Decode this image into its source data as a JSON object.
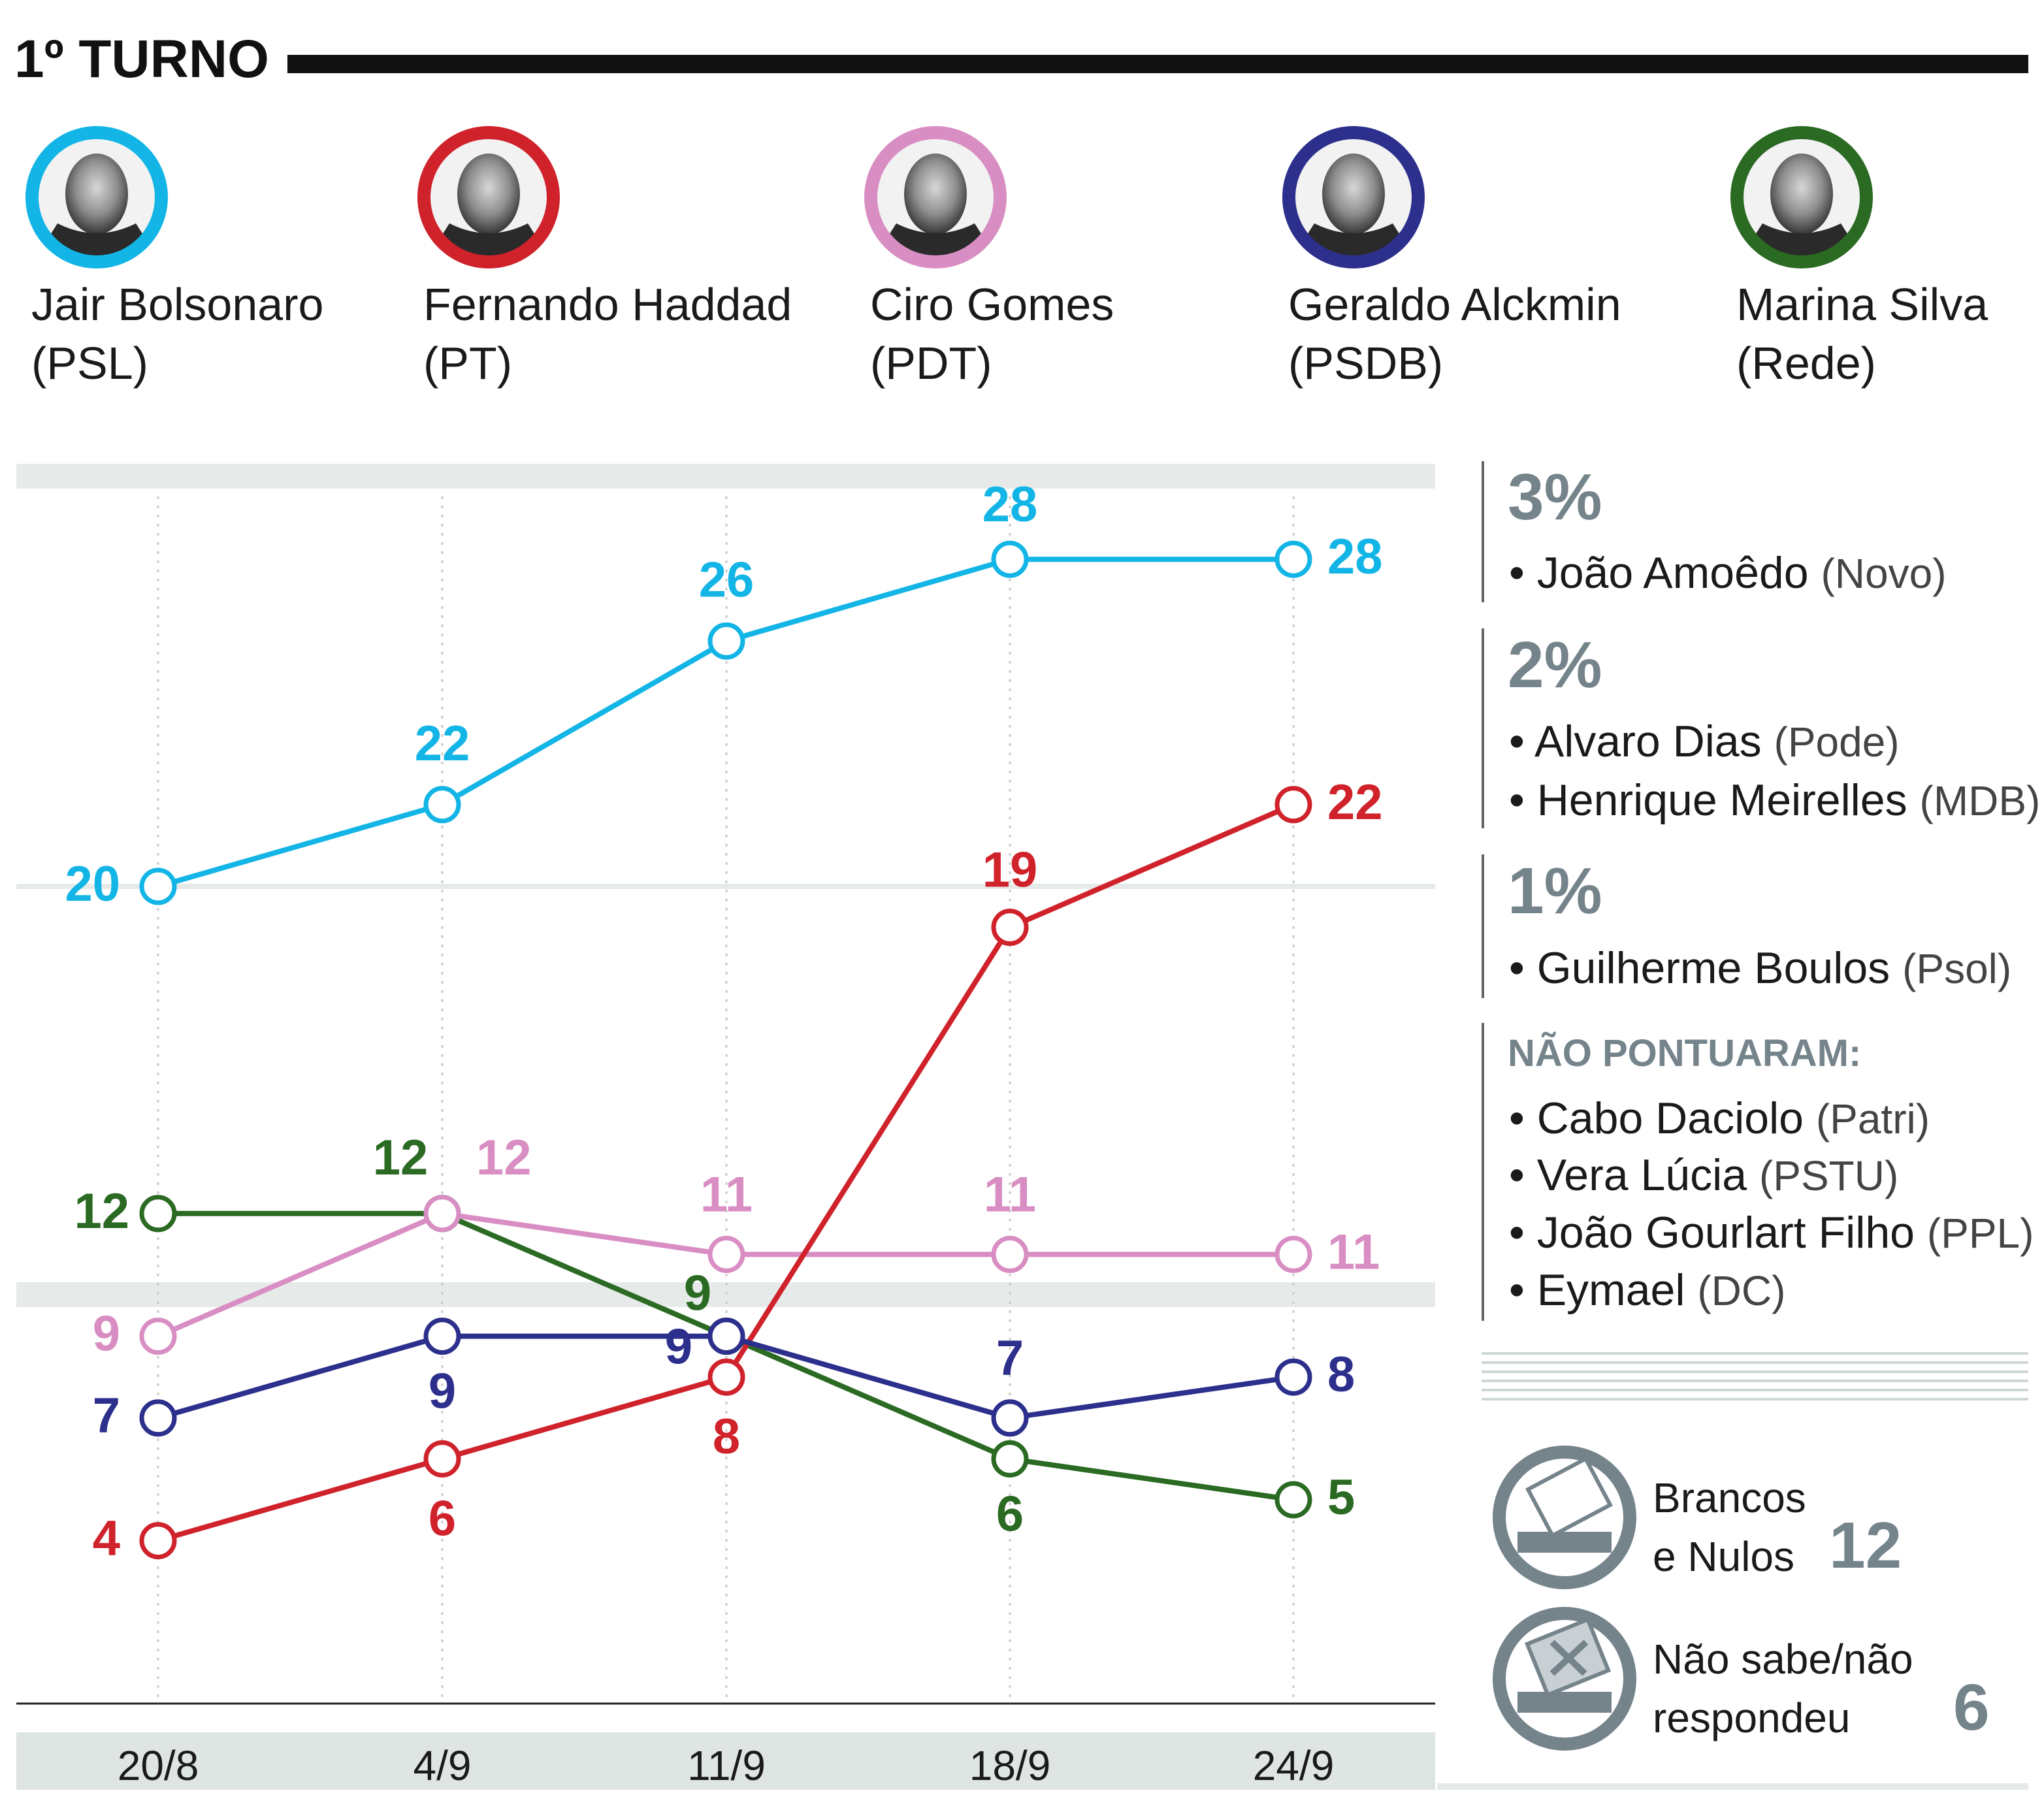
{
  "header": {
    "title": "1º TURNO"
  },
  "candidates": [
    {
      "name": "Jair Bolsonaro",
      "party": "(PSL)",
      "color": "#12b5e6",
      "icon": "portrait-photo"
    },
    {
      "name": "Fernando Haddad",
      "party": "(PT)",
      "color": "#d0222b",
      "icon": "portrait-photo"
    },
    {
      "name": "Ciro Gomes",
      "party": "(PDT)",
      "color": "#d98ec3",
      "icon": "portrait-photo"
    },
    {
      "name": "Geraldo Alckmin",
      "party": "(PSDB)",
      "color": "#2c2f8c",
      "icon": "portrait-photo"
    },
    {
      "name": "Marina Silva",
      "party": "(Rede)",
      "color": "#2a6a22",
      "icon": "portrait-photo"
    }
  ],
  "chart_data": {
    "type": "line",
    "title": "1º TURNO",
    "categories": [
      "20/8",
      "4/9",
      "11/9",
      "18/9",
      "24/9"
    ],
    "ylim": [
      0,
      30
    ],
    "grid": true,
    "series": [
      {
        "name": "Jair Bolsonaro",
        "color": "#12b5e6",
        "values": [
          20,
          22,
          26,
          28,
          28
        ]
      },
      {
        "name": "Fernando Haddad",
        "color": "#d0222b",
        "values": [
          4,
          6,
          8,
          19,
          22
        ]
      },
      {
        "name": "Ciro Gomes",
        "color": "#d98ec3",
        "values": [
          9,
          12,
          11,
          11,
          11
        ]
      },
      {
        "name": "Geraldo Alckmin",
        "color": "#2c2f8c",
        "values": [
          7,
          9,
          9,
          7,
          8
        ]
      },
      {
        "name": "Marina Silva",
        "color": "#2a6a22",
        "values": [
          12,
          12,
          9,
          6,
          5
        ]
      }
    ]
  },
  "others": {
    "groups": [
      {
        "percent": "3%",
        "items": [
          {
            "name": "João Amoêdo",
            "party": "(Novo)"
          }
        ]
      },
      {
        "percent": "2%",
        "items": [
          {
            "name": "Alvaro Dias",
            "party": "(Pode)"
          },
          {
            "name": "Henrique Meirelles",
            "party": "(MDB)"
          }
        ]
      },
      {
        "percent": "1%",
        "items": [
          {
            "name": "Guilherme Boulos",
            "party": "(Psol)"
          }
        ]
      }
    ],
    "no_score": {
      "heading": "NÃO PONTUARAM:",
      "items": [
        {
          "name": "Cabo Daciolo",
          "party": "(Patri)"
        },
        {
          "name": "Vera Lúcia",
          "party": "(PSTU)"
        },
        {
          "name": "João Gourlart Filho",
          "party": "(PPL)"
        },
        {
          "name": "Eymael",
          "party": "(DC)"
        }
      ]
    }
  },
  "summary": {
    "blank_null": {
      "line1": "Brancos",
      "line2": "e Nulos",
      "value": "12",
      "icon": "ballot-box-icon"
    },
    "dont_know": {
      "line1": "Não sabe/não",
      "line2": "respondeu",
      "value": "6",
      "icon": "ballot-x-icon"
    }
  },
  "colors": {
    "grey_text": "#75838b",
    "band": "#e6ebea",
    "axis_band": "#dfe5e3"
  }
}
